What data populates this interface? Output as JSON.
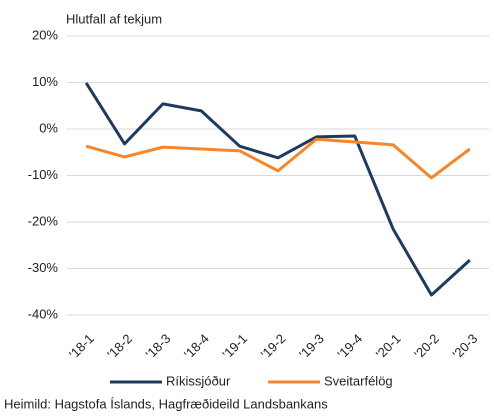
{
  "chart_data": {
    "type": "line",
    "subtitle": "Hlutfall af tekjum",
    "source": "Heimild: Hagstofa Íslands, Hagfræðideild Landsbankans",
    "categories": [
      "'18-1",
      "'18-2",
      "'18-3",
      "'18-4",
      "'19-1",
      "'19-2",
      "'19-3",
      "'19-4",
      "'20-1",
      "'20-2",
      "'20-3"
    ],
    "series": [
      {
        "name": "Ríkissjóður",
        "color": "#1f3b5c",
        "values": [
          9.9,
          -3.2,
          5.4,
          3.9,
          -3.7,
          -6.2,
          -1.7,
          -1.5,
          -21.5,
          -35.7,
          -28.2
        ]
      },
      {
        "name": "Sveitarfélög",
        "color": "#f7862a",
        "values": [
          -3.7,
          -6.0,
          -3.9,
          -4.3,
          -4.7,
          -9.0,
          -2.2,
          -2.8,
          -3.4,
          -10.5,
          -4.3
        ]
      }
    ],
    "ylim": [
      -40,
      20
    ],
    "yticks": [
      {
        "value": -40,
        "label": "-40%"
      },
      {
        "value": -30,
        "label": "-30%"
      },
      {
        "value": -20,
        "label": "-20%"
      },
      {
        "value": -10,
        "label": "-10%"
      },
      {
        "value": 0,
        "label": "0%"
      },
      {
        "value": 10,
        "label": "10%"
      },
      {
        "value": 20,
        "label": "20%"
      }
    ],
    "grid": true,
    "legend": "bottom"
  }
}
